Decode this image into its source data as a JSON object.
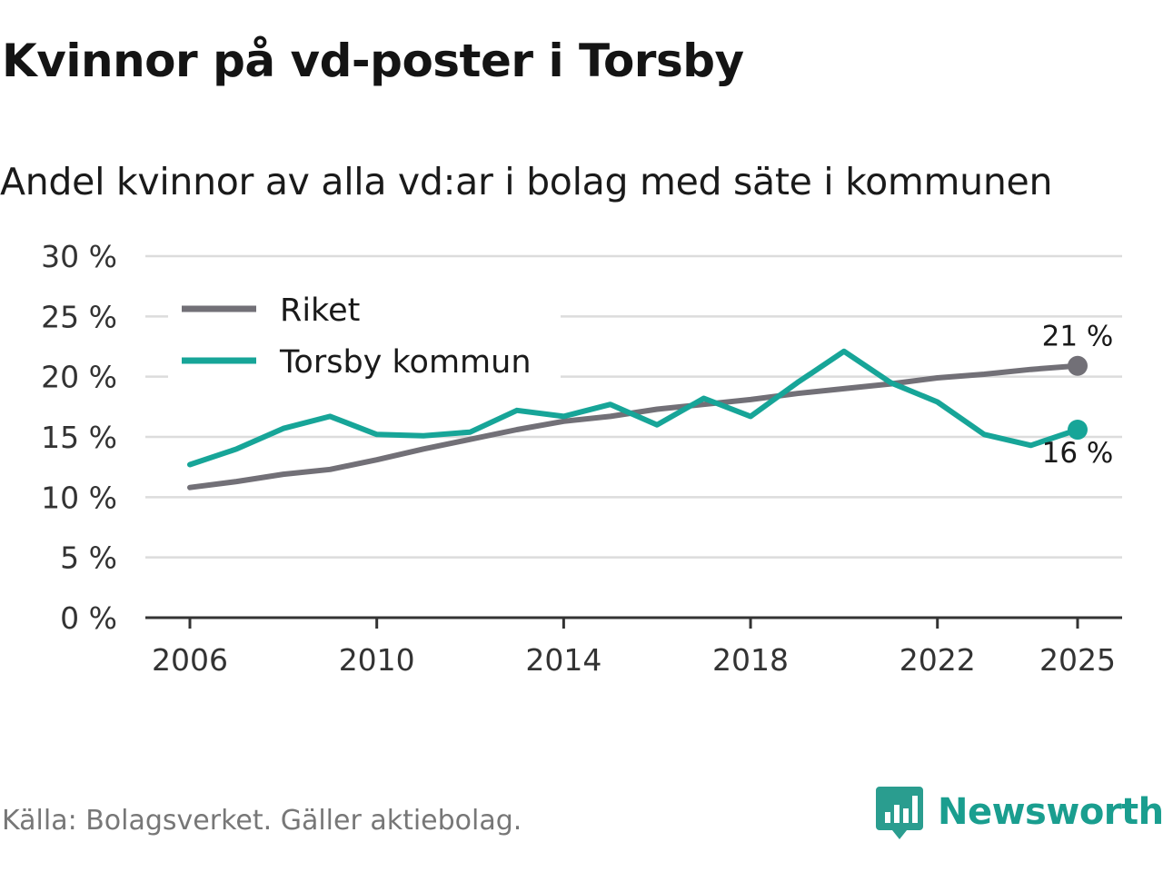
{
  "title": "Kvinnor på vd-poster i Torsby",
  "subtitle": "Andel kvinnor av alla vd:ar i bolag med säte i kommunen",
  "source": "Källa: Bolagsverket. Gäller aktiebolag.",
  "brand": "Newsworthy",
  "chart_data": {
    "type": "line",
    "title": "Kvinnor på vd-poster i Torsby",
    "subtitle": "Andel kvinnor av alla vd:ar i bolag med säte i kommunen",
    "x": [
      2006,
      2007,
      2008,
      2009,
      2010,
      2011,
      2012,
      2013,
      2014,
      2015,
      2016,
      2017,
      2018,
      2019,
      2020,
      2021,
      2022,
      2023,
      2024,
      2025
    ],
    "x_ticks": [
      "2006",
      "2010",
      "2014",
      "2018",
      "2022",
      "2025"
    ],
    "y_ticks": [
      "0 %",
      "5 %",
      "10 %",
      "15 %",
      "20 %",
      "25 %",
      "30 %"
    ],
    "ylim": [
      0,
      30
    ],
    "legend_position": "top-left",
    "grid": true,
    "series": [
      {
        "name": "Riket",
        "color": "#727077",
        "values": [
          10.8,
          11.3,
          11.9,
          12.3,
          13.1,
          14.0,
          14.8,
          15.6,
          16.3,
          16.7,
          17.3,
          17.7,
          18.1,
          18.6,
          19.0,
          19.4,
          19.9,
          20.2,
          20.6,
          20.9
        ],
        "end_label": "21 %"
      },
      {
        "name": "Torsby kommun",
        "color": "#17a598",
        "values": [
          12.7,
          14.0,
          15.7,
          16.7,
          15.2,
          15.1,
          15.4,
          17.2,
          16.7,
          17.7,
          16.0,
          18.2,
          16.7,
          19.5,
          22.1,
          19.5,
          17.9,
          15.2,
          14.3,
          15.6
        ],
        "end_label": "16 %"
      }
    ]
  }
}
